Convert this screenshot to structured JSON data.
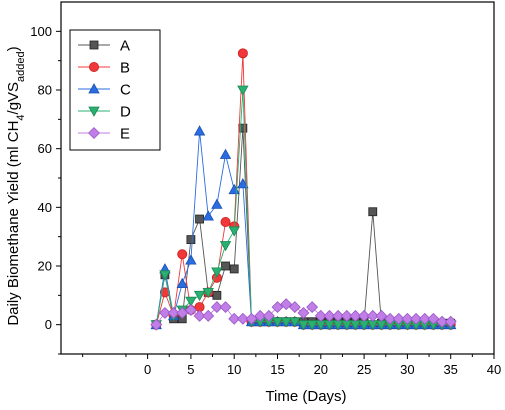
{
  "chart_data": {
    "type": "line",
    "xlabel": "Time (Days)",
    "ylabel_main": "Daily Biomethane Yield (ml CH",
    "ylabel_sub1": "4",
    "ylabel_mid": "/gVS",
    "ylabel_sub2": "added",
    "ylabel_end": ")",
    "xlim": [
      -10,
      40
    ],
    "ylim": [
      -10,
      110
    ],
    "x_ticks": [
      "0",
      "5",
      "10",
      "15",
      "20",
      "25",
      "30",
      "35",
      "40"
    ],
    "y_ticks": [
      "0",
      "20",
      "40",
      "60",
      "80",
      "100"
    ],
    "legend_position": "top-left",
    "grid": false,
    "series": [
      {
        "name": "A",
        "color": "#555555",
        "edge": "#222222",
        "marker": "square",
        "x": [
          1,
          2,
          3,
          4,
          5,
          6,
          7,
          8,
          9,
          10,
          11,
          12,
          13,
          14,
          15,
          16,
          17,
          18,
          19,
          20,
          21,
          22,
          23,
          24,
          25,
          26,
          27,
          28,
          29,
          30,
          31,
          32,
          33,
          34,
          35
        ],
        "y": [
          0,
          17,
          2,
          2,
          29,
          36,
          11,
          10,
          20,
          19,
          67,
          1,
          1,
          1,
          1,
          1,
          1,
          1,
          1,
          1,
          1,
          1,
          1,
          1,
          1,
          38.5,
          0.5,
          0.5,
          0.5,
          0.5,
          0.5,
          0.5,
          0.5,
          0.5,
          0.5
        ]
      },
      {
        "name": "B",
        "color": "#f0383a",
        "edge": "#c81e1e",
        "marker": "circle",
        "x": [
          1,
          2,
          3,
          4,
          5,
          6,
          7,
          8,
          9,
          10,
          11,
          12,
          13,
          14,
          15,
          16,
          17,
          18,
          19,
          20,
          21,
          22,
          23,
          24,
          25,
          26,
          27,
          28,
          29,
          30,
          31,
          32,
          33,
          34,
          35
        ],
        "y": [
          0,
          11,
          3,
          24,
          5,
          6,
          11,
          16,
          35,
          33.5,
          92.5,
          1,
          1,
          1,
          1,
          1,
          1,
          0,
          0,
          0,
          0,
          0,
          0,
          0,
          0,
          0,
          0,
          0,
          0,
          0,
          0,
          0,
          0,
          0,
          0
        ]
      },
      {
        "name": "C",
        "color": "#2a6de0",
        "edge": "#1a4fb0",
        "marker": "triangle-up",
        "x": [
          1,
          2,
          3,
          4,
          5,
          6,
          7,
          8,
          9,
          10,
          11,
          12,
          13,
          14,
          15,
          16,
          17,
          18,
          19,
          20,
          21,
          22,
          23,
          24,
          25,
          26,
          27,
          28,
          29,
          30,
          31,
          32,
          33,
          34,
          35
        ],
        "y": [
          0,
          19,
          3,
          14,
          22,
          66,
          37,
          41,
          58,
          46,
          48,
          1,
          1,
          1,
          1,
          1,
          1,
          0,
          0,
          0,
          0,
          0,
          0,
          0,
          0,
          0,
          0,
          0,
          0,
          0,
          0,
          0,
          0,
          0,
          0
        ]
      },
      {
        "name": "D",
        "color": "#2ab070",
        "edge": "#1a8a55",
        "marker": "triangle-down",
        "x": [
          1,
          2,
          3,
          4,
          5,
          6,
          7,
          8,
          9,
          10,
          11,
          12,
          13,
          14,
          15,
          16,
          17,
          18,
          19,
          20,
          21,
          22,
          23,
          24,
          25,
          26,
          27,
          28,
          29,
          30,
          31,
          32,
          33,
          34,
          35
        ],
        "y": [
          0,
          17,
          3,
          5,
          8,
          10,
          11,
          18,
          27,
          32,
          80,
          1,
          1,
          1,
          1,
          1,
          1,
          0,
          0,
          0,
          0,
          0,
          0,
          0,
          0,
          0,
          0,
          0,
          0,
          0,
          0,
          0,
          0,
          0,
          0
        ]
      },
      {
        "name": "E",
        "color": "#c07ee6",
        "edge": "#9a58c8",
        "marker": "diamond",
        "x": [
          1,
          2,
          3,
          4,
          5,
          6,
          7,
          8,
          9,
          10,
          11,
          12,
          13,
          14,
          15,
          16,
          17,
          18,
          19,
          20,
          21,
          22,
          23,
          24,
          25,
          26,
          27,
          28,
          29,
          30,
          31,
          32,
          33,
          34,
          35
        ],
        "y": [
          0,
          4,
          4,
          4,
          5,
          3,
          3,
          6,
          6,
          2,
          2,
          2,
          3,
          3,
          6,
          7,
          6,
          4,
          6,
          3,
          3,
          3,
          3,
          3,
          3,
          3,
          3,
          2,
          2,
          2,
          2,
          2,
          2,
          1,
          1
        ]
      }
    ]
  }
}
